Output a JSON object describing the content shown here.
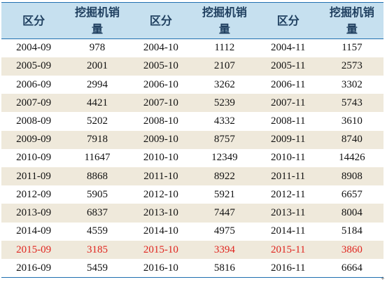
{
  "table": {
    "headers": [
      "区分",
      "挖掘机销量",
      "区分",
      "挖掘机销量",
      "区分",
      "挖掘机销量"
    ],
    "rows": [
      {
        "cells": [
          "2004-09",
          "978",
          "2004-10",
          "1112",
          "2004-11",
          "1157"
        ],
        "highlight": false
      },
      {
        "cells": [
          "2005-09",
          "2001",
          "2005-10",
          "2107",
          "2005-11",
          "2573"
        ],
        "highlight": false
      },
      {
        "cells": [
          "2006-09",
          "2994",
          "2006-10",
          "3262",
          "2006-11",
          "3302"
        ],
        "highlight": false
      },
      {
        "cells": [
          "2007-09",
          "4421",
          "2007-10",
          "5239",
          "2007-11",
          "5743"
        ],
        "highlight": false
      },
      {
        "cells": [
          "2008-09",
          "5202",
          "2008-10",
          "4332",
          "2008-11",
          "3610"
        ],
        "highlight": false
      },
      {
        "cells": [
          "2009-09",
          "7918",
          "2009-10",
          "8757",
          "2009-11",
          "8740"
        ],
        "highlight": false
      },
      {
        "cells": [
          "2010-09",
          "11647",
          "2010-10",
          "12349",
          "2010-11",
          "14426"
        ],
        "highlight": false
      },
      {
        "cells": [
          "2011-09",
          "8868",
          "2011-10",
          "8922",
          "2011-11",
          "8908"
        ],
        "highlight": false
      },
      {
        "cells": [
          "2012-09",
          "5905",
          "2012-10",
          "5921",
          "2012-11",
          "6657"
        ],
        "highlight": false
      },
      {
        "cells": [
          "2013-09",
          "6837",
          "2013-10",
          "7447",
          "2013-11",
          "8004"
        ],
        "highlight": false
      },
      {
        "cells": [
          "2014-09",
          "4559",
          "2014-10",
          "4975",
          "2014-11",
          "5184"
        ],
        "highlight": false
      },
      {
        "cells": [
          "2015-09",
          "3185",
          "2015-10",
          "3394",
          "2015-11",
          "3860"
        ],
        "highlight": true
      },
      {
        "cells": [
          "2016-09",
          "5459",
          "2016-10",
          "5816",
          "2016-11",
          "6664"
        ],
        "highlight": false
      }
    ]
  },
  "colors": {
    "header_background": "#c6e0ef",
    "band_background": "#efe9db",
    "rule_line": "#1f6fb0",
    "highlight_text": "#e0231d"
  },
  "corner_mark": "+"
}
